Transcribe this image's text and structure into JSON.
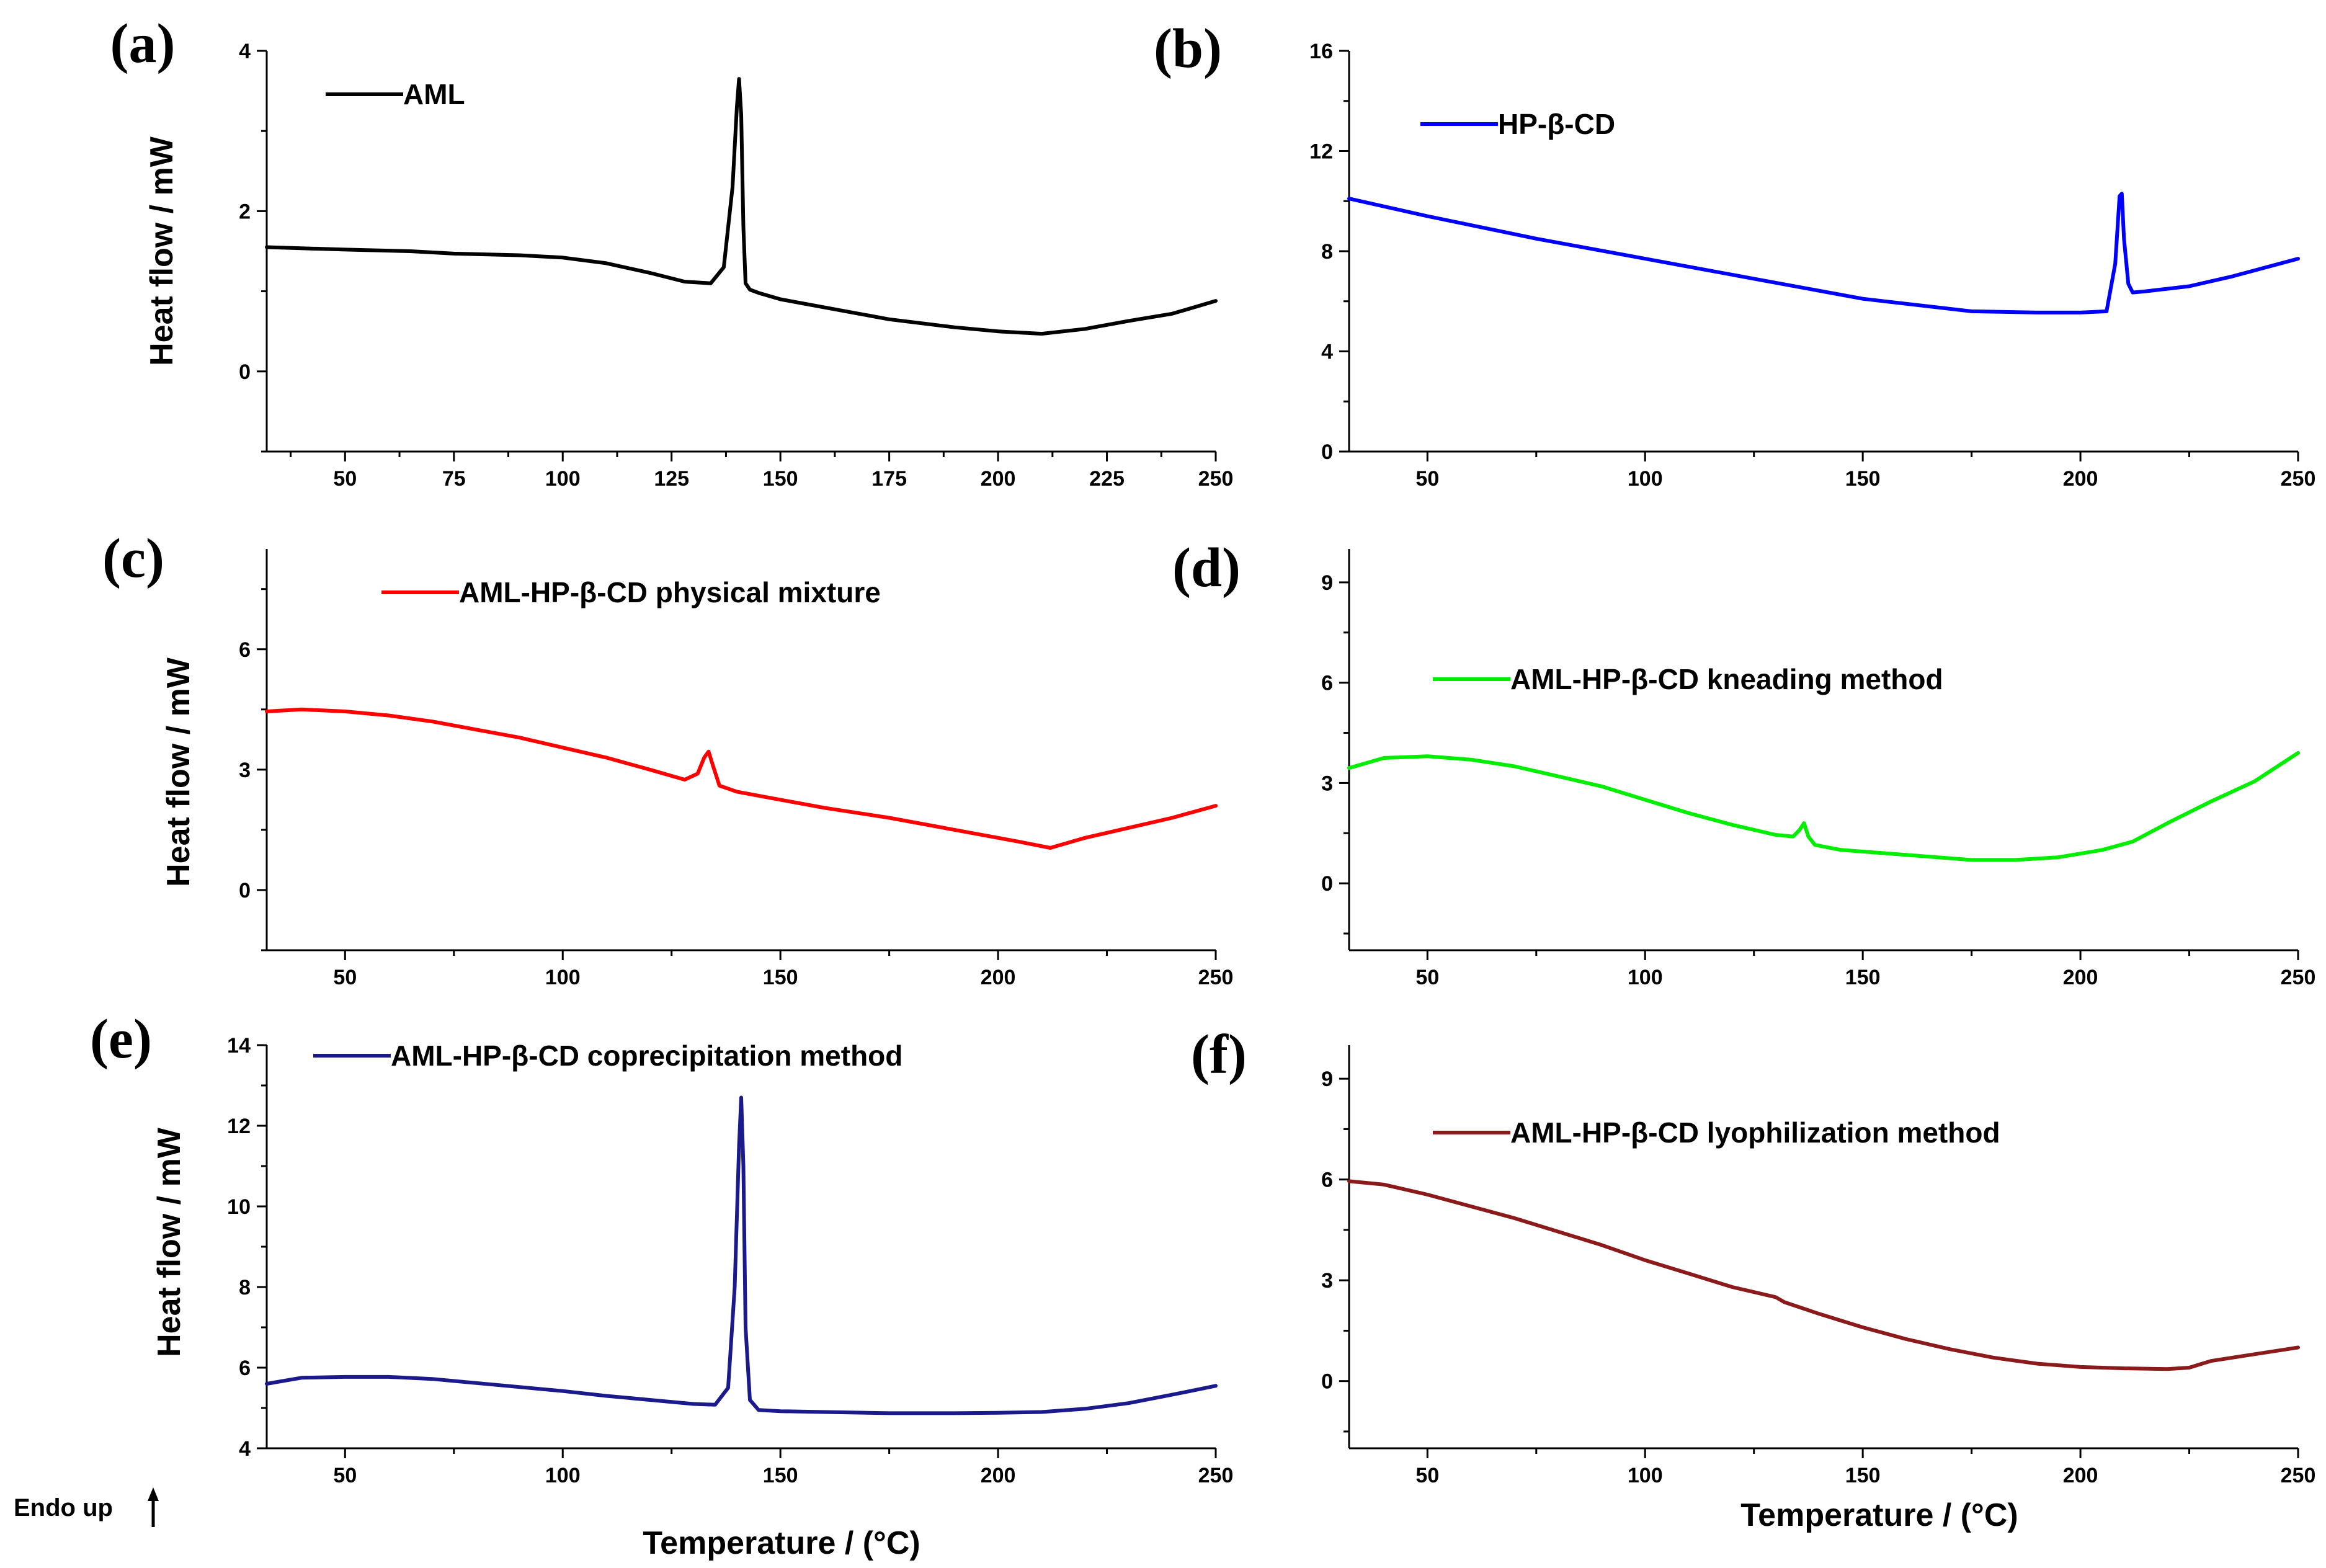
{
  "figure": {
    "endo_note": "Endo up",
    "endo_arrow": "up-arrow-icon"
  },
  "chart_data": [
    {
      "panel": "(a)",
      "type": "line",
      "ylabel": "Heat flow / mW",
      "xlabel": "",
      "xlim": [
        32,
        250
      ],
      "ylim": [
        -1,
        4
      ],
      "xticks": [
        50,
        75,
        100,
        125,
        150,
        175,
        200,
        225,
        250
      ],
      "yticks": [
        0,
        2,
        4
      ],
      "series": [
        {
          "name": "AML",
          "color": "#000000",
          "x": [
            32,
            50,
            65,
            75,
            90,
            100,
            110,
            120,
            128,
            134,
            137,
            139,
            140,
            140.5,
            141,
            141.5,
            142,
            143,
            145,
            150,
            160,
            175,
            190,
            200,
            210,
            220,
            230,
            240,
            250
          ],
          "y": [
            1.55,
            1.52,
            1.5,
            1.47,
            1.45,
            1.42,
            1.35,
            1.23,
            1.12,
            1.1,
            1.3,
            2.3,
            3.3,
            3.65,
            3.2,
            1.8,
            1.1,
            1.02,
            0.98,
            0.9,
            0.8,
            0.65,
            0.55,
            0.5,
            0.47,
            0.53,
            0.63,
            0.72,
            0.88
          ]
        }
      ]
    },
    {
      "panel": "(b)",
      "type": "line",
      "ylabel": "",
      "xlabel": "",
      "xlim": [
        32,
        250
      ],
      "ylim": [
        0,
        16
      ],
      "xticks": [
        50,
        100,
        150,
        200,
        250
      ],
      "yticks": [
        0,
        4,
        8,
        12,
        16
      ],
      "series": [
        {
          "name": "HP-β-CD",
          "color": "#0000ff",
          "x": [
            32,
            50,
            75,
            100,
            125,
            150,
            175,
            190,
            200,
            206,
            208,
            209,
            209.5,
            210,
            211,
            212,
            215,
            225,
            235,
            250
          ],
          "y": [
            10.1,
            9.4,
            8.5,
            7.7,
            6.9,
            6.1,
            5.6,
            5.55,
            5.55,
            5.6,
            7.5,
            10.2,
            10.3,
            8.5,
            6.7,
            6.35,
            6.4,
            6.6,
            7.0,
            7.7
          ]
        }
      ]
    },
    {
      "panel": "(c)",
      "type": "line",
      "ylabel": "Heat flow / mW",
      "xlabel": "",
      "xlim": [
        32,
        250
      ],
      "ylim": [
        -1.5,
        8.5
      ],
      "xticks": [
        50,
        100,
        150,
        200,
        250
      ],
      "yticks": [
        0,
        3,
        6
      ],
      "series": [
        {
          "name": "AML-HP-β-CD physical mixture",
          "color": "#ff0000",
          "x": [
            32,
            40,
            50,
            60,
            70,
            80,
            90,
            100,
            110,
            120,
            128,
            131,
            132.5,
            133.5,
            134.5,
            136,
            140,
            150,
            160,
            175,
            190,
            200,
            205,
            212,
            220,
            230,
            240,
            250
          ],
          "y": [
            4.45,
            4.5,
            4.45,
            4.35,
            4.2,
            4.0,
            3.8,
            3.55,
            3.3,
            3.0,
            2.75,
            2.9,
            3.3,
            3.45,
            3.1,
            2.6,
            2.45,
            2.25,
            2.05,
            1.8,
            1.5,
            1.3,
            1.2,
            1.05,
            1.3,
            1.55,
            1.8,
            2.1
          ]
        }
      ]
    },
    {
      "panel": "(d)",
      "type": "line",
      "ylabel": "",
      "xlabel": "",
      "xlim": [
        32,
        250
      ],
      "ylim": [
        -2,
        10
      ],
      "xticks": [
        50,
        100,
        150,
        200,
        250
      ],
      "yticks": [
        0,
        3,
        6,
        9
      ],
      "series": [
        {
          "name": "AML-HP-β-CD kneading method",
          "color": "#00ee00",
          "x": [
            32,
            40,
            50,
            60,
            70,
            80,
            90,
            100,
            110,
            120,
            130,
            134,
            135.5,
            136.5,
            137.5,
            139,
            145,
            155,
            165,
            175,
            185,
            195,
            205,
            212,
            220,
            230,
            240,
            250
          ],
          "y": [
            3.45,
            3.75,
            3.8,
            3.7,
            3.5,
            3.2,
            2.9,
            2.5,
            2.1,
            1.75,
            1.45,
            1.4,
            1.6,
            1.8,
            1.4,
            1.15,
            1.0,
            0.9,
            0.8,
            0.7,
            0.7,
            0.78,
            1.0,
            1.25,
            1.8,
            2.45,
            3.05,
            3.9
          ]
        }
      ]
    },
    {
      "panel": "(e)",
      "type": "line",
      "ylabel": "Heat flow / mW",
      "xlabel": "Temperature / (°C)",
      "xlim": [
        32,
        250
      ],
      "ylim": [
        4,
        14
      ],
      "xticks": [
        50,
        100,
        150,
        200,
        250
      ],
      "yticks": [
        4,
        6,
        8,
        10,
        12,
        14
      ],
      "series": [
        {
          "name": "AML-HP-β-CD coprecipitation method",
          "color": "#1a1a8c",
          "x": [
            32,
            40,
            50,
            60,
            70,
            80,
            90,
            100,
            110,
            120,
            130,
            135,
            138,
            139.5,
            140.5,
            141,
            141.5,
            142,
            143,
            145,
            150,
            160,
            175,
            190,
            200,
            210,
            220,
            230,
            240,
            250
          ],
          "y": [
            5.6,
            5.75,
            5.77,
            5.77,
            5.72,
            5.62,
            5.52,
            5.42,
            5.3,
            5.2,
            5.1,
            5.08,
            5.5,
            8.0,
            11.5,
            12.7,
            11.0,
            7.0,
            5.2,
            4.95,
            4.92,
            4.9,
            4.87,
            4.87,
            4.88,
            4.9,
            4.98,
            5.12,
            5.33,
            5.55
          ]
        }
      ]
    },
    {
      "panel": "(f)",
      "type": "line",
      "ylabel": "",
      "xlabel": "Temperature / (°C)",
      "xlim": [
        32,
        250
      ],
      "ylim": [
        -2,
        10
      ],
      "xticks": [
        50,
        100,
        150,
        200,
        250
      ],
      "yticks": [
        0,
        3,
        6,
        9
      ],
      "series": [
        {
          "name": "AML-HP-β-CD lyophilization method",
          "color": "#8b1a1a",
          "x": [
            32,
            40,
            50,
            60,
            70,
            80,
            90,
            100,
            110,
            120,
            130,
            132,
            140,
            150,
            160,
            170,
            180,
            190,
            200,
            210,
            220,
            225,
            230,
            240,
            250
          ],
          "y": [
            5.95,
            5.85,
            5.55,
            5.2,
            4.85,
            4.45,
            4.05,
            3.6,
            3.2,
            2.8,
            2.5,
            2.35,
            2.0,
            1.6,
            1.25,
            0.95,
            0.7,
            0.52,
            0.42,
            0.38,
            0.36,
            0.4,
            0.6,
            0.8,
            1.0
          ]
        }
      ]
    }
  ]
}
